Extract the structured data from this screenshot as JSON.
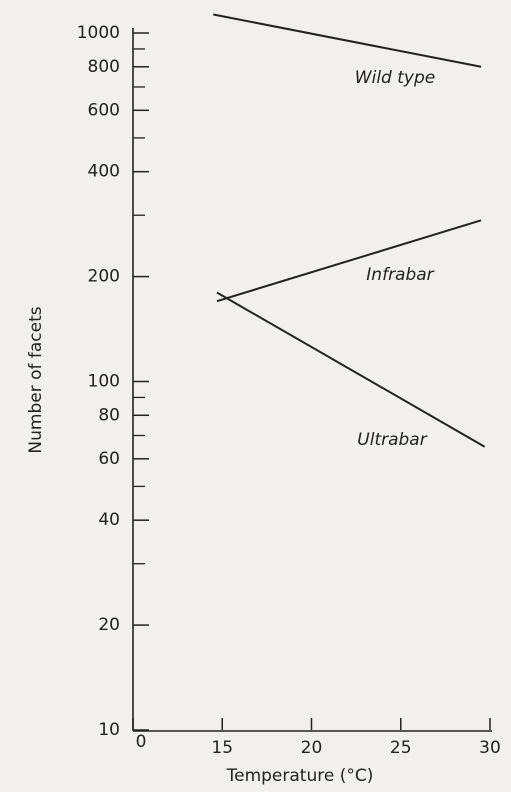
{
  "chart_data": {
    "type": "line",
    "xlabel": "Temperature (°C)",
    "ylabel": "Number of facets",
    "series": [
      {
        "name": "Wild type",
        "color": "#222222",
        "x": [
          14.5,
          29.5
        ],
        "values": [
          1130,
          800
        ]
      },
      {
        "name": "Infrabar",
        "color": "#222222",
        "x": [
          14.7,
          29.5
        ],
        "values": [
          170,
          290
        ]
      },
      {
        "name": "Ultrabar",
        "color": "#222222",
        "x": [
          14.7,
          29.7
        ],
        "values": [
          180,
          65
        ]
      }
    ],
    "xlim": [
      10,
      30
    ],
    "xticks": [
      {
        "value": 10,
        "label": "0"
      },
      15,
      20,
      25,
      30
    ],
    "ylim": [
      10,
      1000
    ],
    "yscale": "log",
    "yticks": [
      10,
      20,
      40,
      60,
      80,
      100,
      200,
      400,
      600,
      800,
      1000
    ],
    "yminorticks": [
      30,
      50,
      70,
      90,
      300,
      500,
      700,
      900
    ],
    "grid": false
  }
}
